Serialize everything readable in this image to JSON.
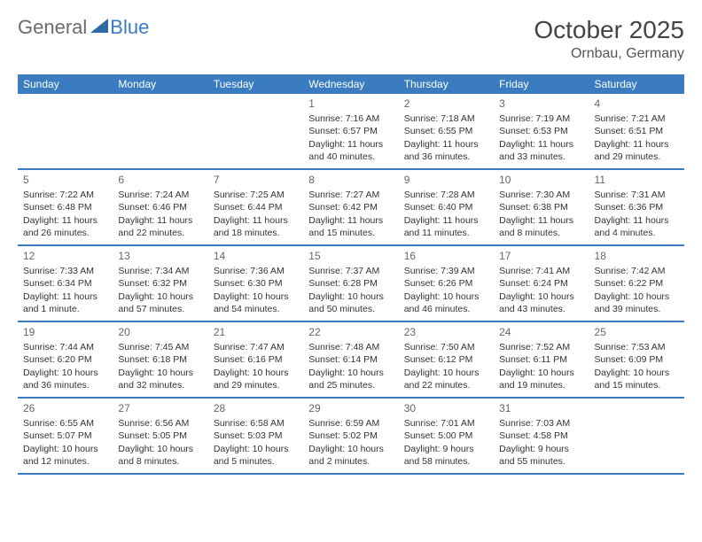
{
  "logo": {
    "text1": "General",
    "text2": "Blue"
  },
  "header": {
    "month_title": "October 2025",
    "location": "Ornbau, Germany"
  },
  "colors": {
    "header_bg": "#3a7cbf",
    "header_text": "#ffffff",
    "border": "#3a7cbf",
    "body_text": "#333333",
    "day_num": "#666666"
  },
  "weekdays": [
    "Sunday",
    "Monday",
    "Tuesday",
    "Wednesday",
    "Thursday",
    "Friday",
    "Saturday"
  ],
  "weeks": [
    [
      {
        "empty": true
      },
      {
        "empty": true
      },
      {
        "empty": true
      },
      {
        "day": "1",
        "sunrise": "Sunrise: 7:16 AM",
        "sunset": "Sunset: 6:57 PM",
        "daylight1": "Daylight: 11 hours",
        "daylight2": "and 40 minutes."
      },
      {
        "day": "2",
        "sunrise": "Sunrise: 7:18 AM",
        "sunset": "Sunset: 6:55 PM",
        "daylight1": "Daylight: 11 hours",
        "daylight2": "and 36 minutes."
      },
      {
        "day": "3",
        "sunrise": "Sunrise: 7:19 AM",
        "sunset": "Sunset: 6:53 PM",
        "daylight1": "Daylight: 11 hours",
        "daylight2": "and 33 minutes."
      },
      {
        "day": "4",
        "sunrise": "Sunrise: 7:21 AM",
        "sunset": "Sunset: 6:51 PM",
        "daylight1": "Daylight: 11 hours",
        "daylight2": "and 29 minutes."
      }
    ],
    [
      {
        "day": "5",
        "sunrise": "Sunrise: 7:22 AM",
        "sunset": "Sunset: 6:48 PM",
        "daylight1": "Daylight: 11 hours",
        "daylight2": "and 26 minutes."
      },
      {
        "day": "6",
        "sunrise": "Sunrise: 7:24 AM",
        "sunset": "Sunset: 6:46 PM",
        "daylight1": "Daylight: 11 hours",
        "daylight2": "and 22 minutes."
      },
      {
        "day": "7",
        "sunrise": "Sunrise: 7:25 AM",
        "sunset": "Sunset: 6:44 PM",
        "daylight1": "Daylight: 11 hours",
        "daylight2": "and 18 minutes."
      },
      {
        "day": "8",
        "sunrise": "Sunrise: 7:27 AM",
        "sunset": "Sunset: 6:42 PM",
        "daylight1": "Daylight: 11 hours",
        "daylight2": "and 15 minutes."
      },
      {
        "day": "9",
        "sunrise": "Sunrise: 7:28 AM",
        "sunset": "Sunset: 6:40 PM",
        "daylight1": "Daylight: 11 hours",
        "daylight2": "and 11 minutes."
      },
      {
        "day": "10",
        "sunrise": "Sunrise: 7:30 AM",
        "sunset": "Sunset: 6:38 PM",
        "daylight1": "Daylight: 11 hours",
        "daylight2": "and 8 minutes."
      },
      {
        "day": "11",
        "sunrise": "Sunrise: 7:31 AM",
        "sunset": "Sunset: 6:36 PM",
        "daylight1": "Daylight: 11 hours",
        "daylight2": "and 4 minutes."
      }
    ],
    [
      {
        "day": "12",
        "sunrise": "Sunrise: 7:33 AM",
        "sunset": "Sunset: 6:34 PM",
        "daylight1": "Daylight: 11 hours",
        "daylight2": "and 1 minute."
      },
      {
        "day": "13",
        "sunrise": "Sunrise: 7:34 AM",
        "sunset": "Sunset: 6:32 PM",
        "daylight1": "Daylight: 10 hours",
        "daylight2": "and 57 minutes."
      },
      {
        "day": "14",
        "sunrise": "Sunrise: 7:36 AM",
        "sunset": "Sunset: 6:30 PM",
        "daylight1": "Daylight: 10 hours",
        "daylight2": "and 54 minutes."
      },
      {
        "day": "15",
        "sunrise": "Sunrise: 7:37 AM",
        "sunset": "Sunset: 6:28 PM",
        "daylight1": "Daylight: 10 hours",
        "daylight2": "and 50 minutes."
      },
      {
        "day": "16",
        "sunrise": "Sunrise: 7:39 AM",
        "sunset": "Sunset: 6:26 PM",
        "daylight1": "Daylight: 10 hours",
        "daylight2": "and 46 minutes."
      },
      {
        "day": "17",
        "sunrise": "Sunrise: 7:41 AM",
        "sunset": "Sunset: 6:24 PM",
        "daylight1": "Daylight: 10 hours",
        "daylight2": "and 43 minutes."
      },
      {
        "day": "18",
        "sunrise": "Sunrise: 7:42 AM",
        "sunset": "Sunset: 6:22 PM",
        "daylight1": "Daylight: 10 hours",
        "daylight2": "and 39 minutes."
      }
    ],
    [
      {
        "day": "19",
        "sunrise": "Sunrise: 7:44 AM",
        "sunset": "Sunset: 6:20 PM",
        "daylight1": "Daylight: 10 hours",
        "daylight2": "and 36 minutes."
      },
      {
        "day": "20",
        "sunrise": "Sunrise: 7:45 AM",
        "sunset": "Sunset: 6:18 PM",
        "daylight1": "Daylight: 10 hours",
        "daylight2": "and 32 minutes."
      },
      {
        "day": "21",
        "sunrise": "Sunrise: 7:47 AM",
        "sunset": "Sunset: 6:16 PM",
        "daylight1": "Daylight: 10 hours",
        "daylight2": "and 29 minutes."
      },
      {
        "day": "22",
        "sunrise": "Sunrise: 7:48 AM",
        "sunset": "Sunset: 6:14 PM",
        "daylight1": "Daylight: 10 hours",
        "daylight2": "and 25 minutes."
      },
      {
        "day": "23",
        "sunrise": "Sunrise: 7:50 AM",
        "sunset": "Sunset: 6:12 PM",
        "daylight1": "Daylight: 10 hours",
        "daylight2": "and 22 minutes."
      },
      {
        "day": "24",
        "sunrise": "Sunrise: 7:52 AM",
        "sunset": "Sunset: 6:11 PM",
        "daylight1": "Daylight: 10 hours",
        "daylight2": "and 19 minutes."
      },
      {
        "day": "25",
        "sunrise": "Sunrise: 7:53 AM",
        "sunset": "Sunset: 6:09 PM",
        "daylight1": "Daylight: 10 hours",
        "daylight2": "and 15 minutes."
      }
    ],
    [
      {
        "day": "26",
        "sunrise": "Sunrise: 6:55 AM",
        "sunset": "Sunset: 5:07 PM",
        "daylight1": "Daylight: 10 hours",
        "daylight2": "and 12 minutes."
      },
      {
        "day": "27",
        "sunrise": "Sunrise: 6:56 AM",
        "sunset": "Sunset: 5:05 PM",
        "daylight1": "Daylight: 10 hours",
        "daylight2": "and 8 minutes."
      },
      {
        "day": "28",
        "sunrise": "Sunrise: 6:58 AM",
        "sunset": "Sunset: 5:03 PM",
        "daylight1": "Daylight: 10 hours",
        "daylight2": "and 5 minutes."
      },
      {
        "day": "29",
        "sunrise": "Sunrise: 6:59 AM",
        "sunset": "Sunset: 5:02 PM",
        "daylight1": "Daylight: 10 hours",
        "daylight2": "and 2 minutes."
      },
      {
        "day": "30",
        "sunrise": "Sunrise: 7:01 AM",
        "sunset": "Sunset: 5:00 PM",
        "daylight1": "Daylight: 9 hours",
        "daylight2": "and 58 minutes."
      },
      {
        "day": "31",
        "sunrise": "Sunrise: 7:03 AM",
        "sunset": "Sunset: 4:58 PM",
        "daylight1": "Daylight: 9 hours",
        "daylight2": "and 55 minutes."
      },
      {
        "empty": true
      }
    ]
  ]
}
